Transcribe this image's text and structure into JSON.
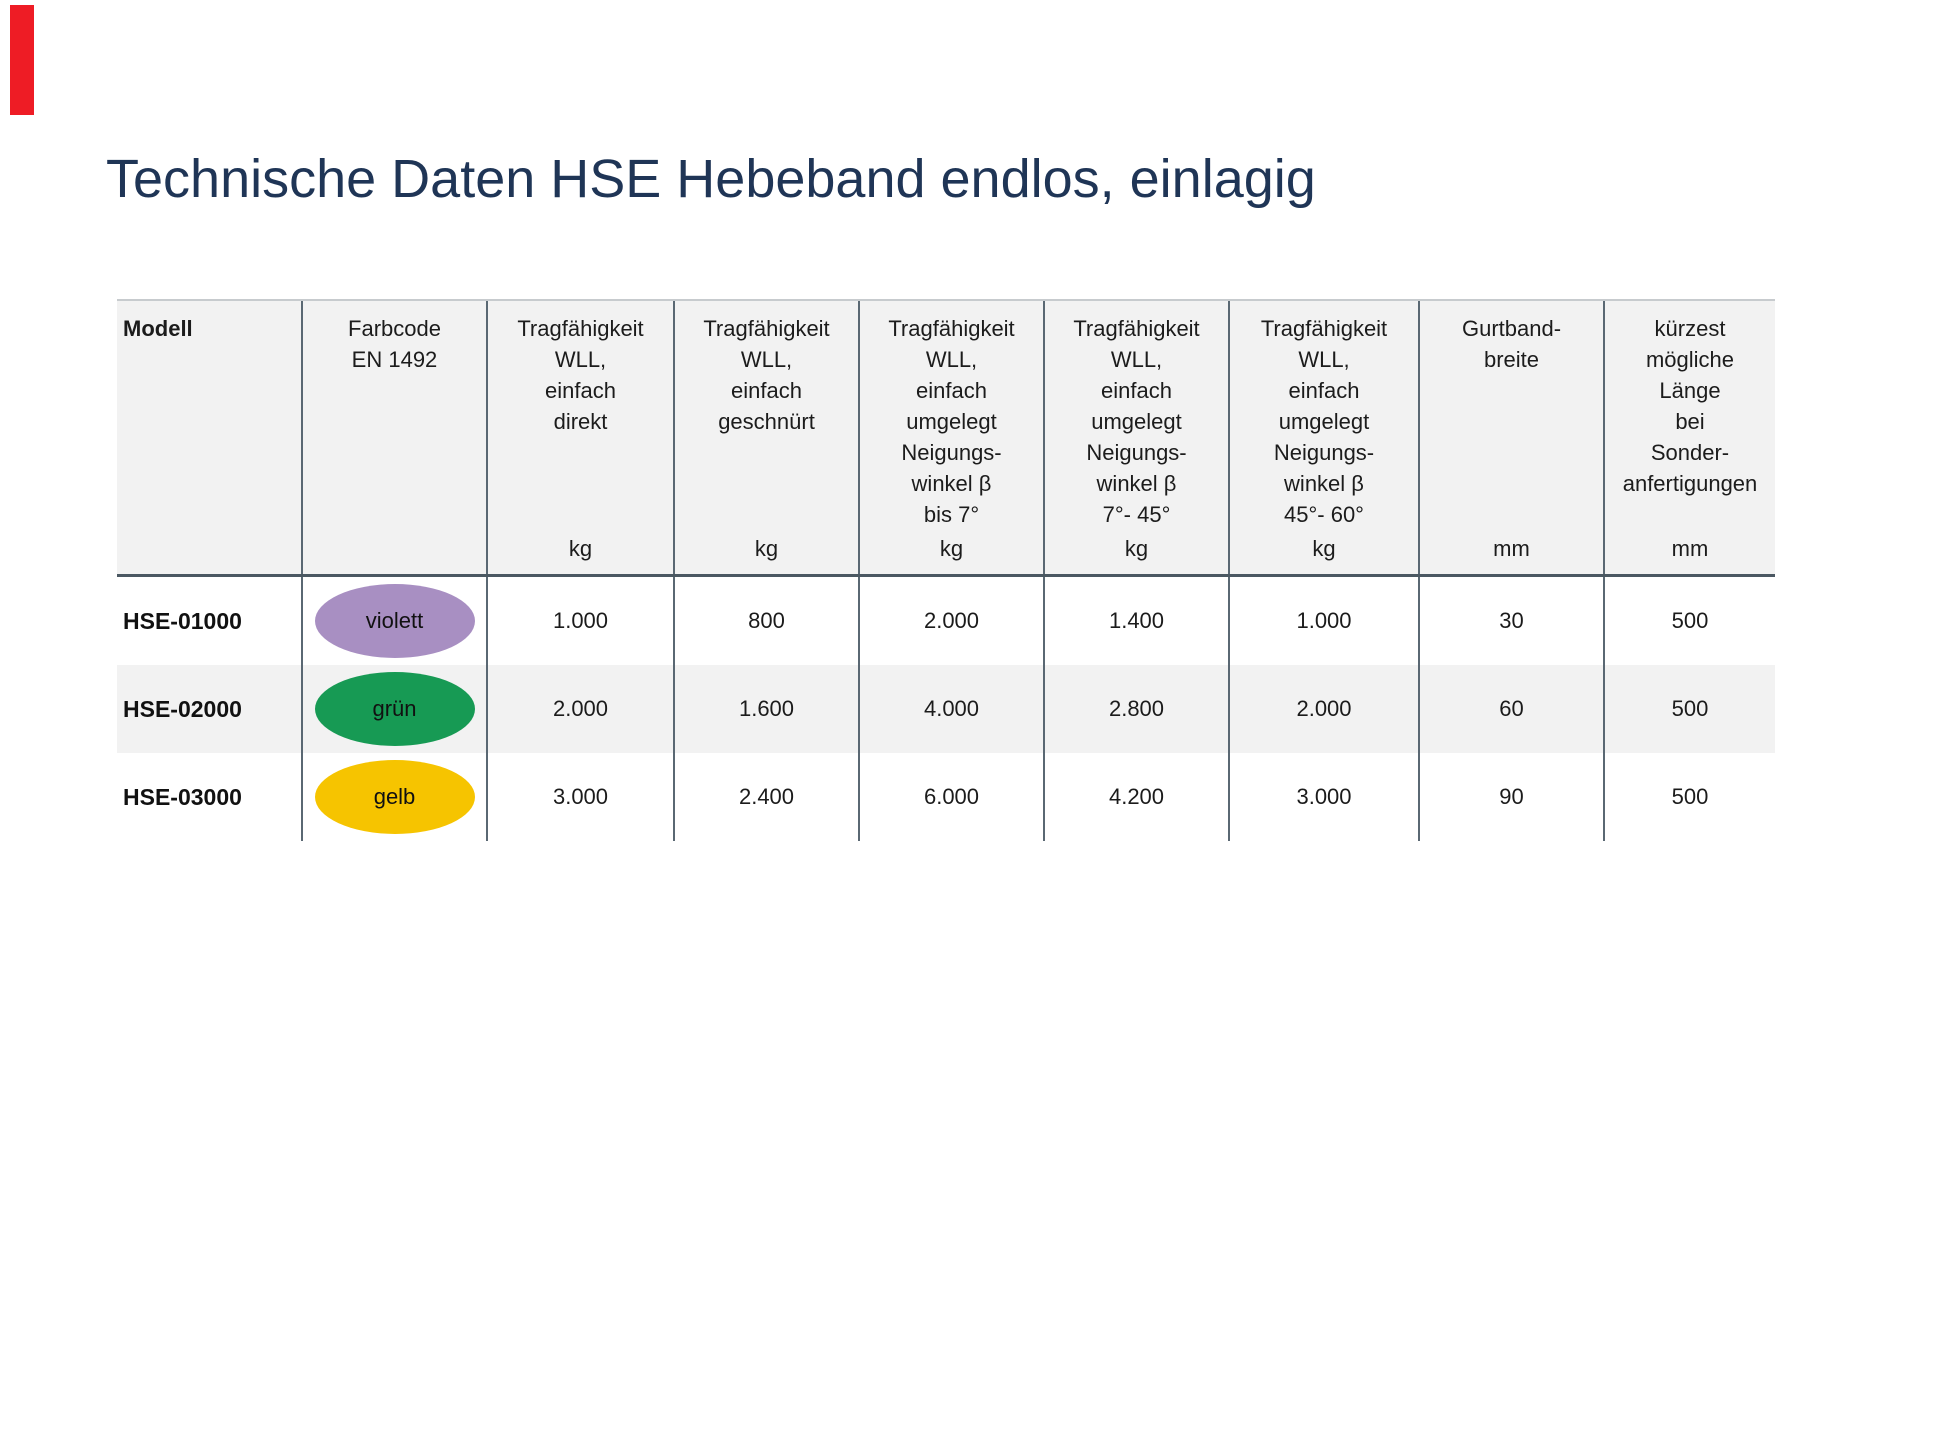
{
  "page": {
    "title_text": "Technische Daten HSE Hebeband endlos, einlagig",
    "title_color": "#1f3556",
    "background": "#ffffff"
  },
  "decorations": {
    "red_marker_color": "#ee1c25"
  },
  "table": {
    "style": {
      "header_bg": "#f2f2f2",
      "alt_row_bg": "#f2f2f2",
      "grid_line_color": "#5a6873",
      "header_rule_color": "#4b5862",
      "top_rule_color": "#c7cbce",
      "text_color": "#1c1c1c"
    },
    "columns": [
      {
        "label_lines": [
          "Modell"
        ],
        "unit": ""
      },
      {
        "label_lines": [
          "Farbcode",
          "EN 1492"
        ],
        "unit": ""
      },
      {
        "label_lines": [
          "Tragfähigkeit",
          "WLL,",
          "einfach",
          "direkt"
        ],
        "unit": "kg"
      },
      {
        "label_lines": [
          "Tragfähigkeit",
          "WLL,",
          "einfach",
          "geschnürt"
        ],
        "unit": "kg"
      },
      {
        "label_lines": [
          "Tragfähigkeit",
          "WLL,",
          "einfach",
          "umgelegt",
          "Neigungs-",
          "winkel β",
          "bis 7°"
        ],
        "unit": "kg"
      },
      {
        "label_lines": [
          "Tragfähigkeit",
          "WLL,",
          "einfach",
          "umgelegt",
          "Neigungs-",
          "winkel β",
          "7°- 45°"
        ],
        "unit": "kg"
      },
      {
        "label_lines": [
          "Tragfähigkeit",
          "WLL,",
          "einfach",
          "umgelegt",
          "Neigungs-",
          "winkel β",
          "45°- 60°"
        ],
        "unit": "kg"
      },
      {
        "label_lines": [
          "Gurtband-",
          "breite"
        ],
        "unit": "mm"
      },
      {
        "label_lines": [
          "kürzest",
          "mögliche",
          "Länge",
          "bei",
          "Sonder-",
          "anfertigungen"
        ],
        "unit": "mm"
      }
    ],
    "rows": [
      {
        "model": "HSE-01000",
        "color": {
          "label": "violett",
          "hex": "#a88fc2"
        },
        "values": [
          "1.000",
          "800",
          "2.000",
          "1.400",
          "1.000",
          "30",
          "500"
        ]
      },
      {
        "model": "HSE-02000",
        "color": {
          "label": "grün",
          "hex": "#179a54"
        },
        "values": [
          "2.000",
          "1.600",
          "4.000",
          "2.800",
          "2.000",
          "60",
          "500"
        ]
      },
      {
        "model": "HSE-03000",
        "color": {
          "label": "gelb",
          "hex": "#f6c400"
        },
        "values": [
          "3.000",
          "2.400",
          "6.000",
          "4.200",
          "3.000",
          "90",
          "500"
        ]
      }
    ]
  }
}
